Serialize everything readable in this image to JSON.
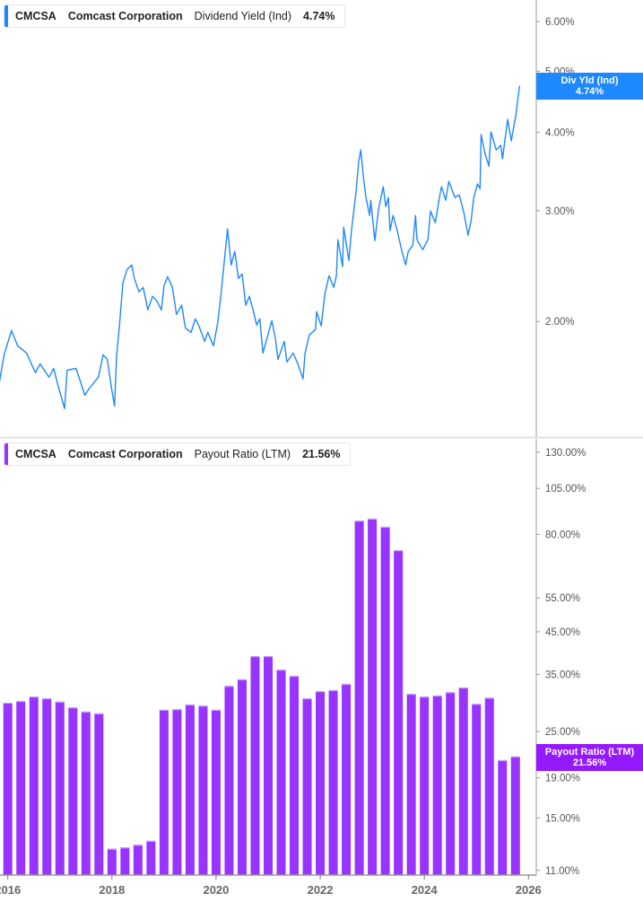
{
  "colors": {
    "yield": "#1e88ff",
    "payout": "#9933ff",
    "axis": "#9a9a9a",
    "divider": "#e0e0e0"
  },
  "top_legend": {
    "ticker": "CMCSA",
    "company": "Comcast Corporation",
    "metric": "Dividend Yield (Ind)",
    "value": "4.74%"
  },
  "top_tag": {
    "label": "Div Yld (Ind)",
    "value": "4.74%"
  },
  "bottom_legend": {
    "ticker": "CMCSA",
    "company": "Comcast Corporation",
    "metric": "Payout Ratio (LTM)",
    "value": "21.56%"
  },
  "bottom_tag": {
    "label": "Payout Ratio (LTM)",
    "value": "21.56%"
  },
  "chart_data": [
    {
      "type": "line",
      "series_name": "Dividend Yield (Ind)",
      "y_scale": "log",
      "xlim": [
        2015.85,
        2026.15
      ],
      "ylim": [
        1.31,
        6.49
      ],
      "x_ticks": [
        "2016",
        "2018",
        "2020",
        "2022",
        "2024",
        "2026"
      ],
      "y_ticks": [
        {
          "value": 6,
          "label": "6.00%"
        },
        {
          "value": 5,
          "label": "5.00%"
        },
        {
          "value": 4,
          "label": "4.00%"
        },
        {
          "value": 3,
          "label": "3.00%"
        },
        {
          "value": 2,
          "label": "2.00%"
        }
      ],
      "points": [
        [
          2015.84,
          1.604
        ],
        [
          2015.93,
          1.771
        ],
        [
          2016.07,
          1.935
        ],
        [
          2016.19,
          1.83
        ],
        [
          2016.36,
          1.782
        ],
        [
          2016.53,
          1.658
        ],
        [
          2016.62,
          1.713
        ],
        [
          2016.79,
          1.631
        ],
        [
          2016.88,
          1.685
        ],
        [
          2016.97,
          1.578
        ],
        [
          2017.09,
          1.454
        ],
        [
          2017.14,
          1.674
        ],
        [
          2017.31,
          1.685
        ],
        [
          2017.48,
          1.527
        ],
        [
          2017.57,
          1.568
        ],
        [
          2017.74,
          1.631
        ],
        [
          2017.83,
          1.771
        ],
        [
          2017.91,
          1.742
        ],
        [
          2018.0,
          1.552
        ],
        [
          2018.05,
          1.468
        ],
        [
          2018.09,
          1.771
        ],
        [
          2018.14,
          1.954
        ],
        [
          2018.21,
          2.303
        ],
        [
          2018.29,
          2.42
        ],
        [
          2018.38,
          2.46
        ],
        [
          2018.43,
          2.342
        ],
        [
          2018.52,
          2.229
        ],
        [
          2018.6,
          2.266
        ],
        [
          2018.69,
          2.087
        ],
        [
          2018.78,
          2.193
        ],
        [
          2018.86,
          2.157
        ],
        [
          2018.95,
          2.087
        ],
        [
          2019.0,
          2.281
        ],
        [
          2019.07,
          2.357
        ],
        [
          2019.16,
          2.266
        ],
        [
          2019.24,
          2.053
        ],
        [
          2019.34,
          2.122
        ],
        [
          2019.41,
          1.954
        ],
        [
          2019.52,
          1.922
        ],
        [
          2019.6,
          2.02
        ],
        [
          2019.67,
          1.968
        ],
        [
          2019.78,
          1.86
        ],
        [
          2019.84,
          1.922
        ],
        [
          2019.95,
          1.83
        ],
        [
          2020.03,
          1.987
        ],
        [
          2020.09,
          2.193
        ],
        [
          2020.16,
          2.501
        ],
        [
          2020.22,
          2.806
        ],
        [
          2020.29,
          2.46
        ],
        [
          2020.36,
          2.585
        ],
        [
          2020.43,
          2.342
        ],
        [
          2020.5,
          2.381
        ],
        [
          2020.57,
          2.122
        ],
        [
          2020.64,
          2.193
        ],
        [
          2020.71,
          2.087
        ],
        [
          2020.78,
          1.974
        ],
        [
          2020.84,
          2.02
        ],
        [
          2020.9,
          1.782
        ],
        [
          2021.07,
          2.006
        ],
        [
          2021.14,
          1.878
        ],
        [
          2021.19,
          1.742
        ],
        [
          2021.31,
          1.86
        ],
        [
          2021.36,
          1.724
        ],
        [
          2021.48,
          1.782
        ],
        [
          2021.57,
          1.713
        ],
        [
          2021.67,
          1.621
        ],
        [
          2021.71,
          1.782
        ],
        [
          2021.79,
          1.904
        ],
        [
          2021.91,
          1.942
        ],
        [
          2021.93,
          2.074
        ],
        [
          2022.02,
          1.968
        ],
        [
          2022.09,
          2.214
        ],
        [
          2022.17,
          2.365
        ],
        [
          2022.26,
          2.266
        ],
        [
          2022.31,
          2.365
        ],
        [
          2022.34,
          2.698
        ],
        [
          2022.43,
          2.444
        ],
        [
          2022.45,
          2.825
        ],
        [
          2022.55,
          2.501
        ],
        [
          2022.6,
          2.788
        ],
        [
          2022.69,
          3.222
        ],
        [
          2022.74,
          3.592
        ],
        [
          2022.78,
          3.749
        ],
        [
          2022.83,
          3.396
        ],
        [
          2022.88,
          3.149
        ],
        [
          2022.95,
          2.949
        ],
        [
          2022.97,
          3.118
        ],
        [
          2023.05,
          2.689
        ],
        [
          2023.12,
          3.017
        ],
        [
          2023.21,
          3.276
        ],
        [
          2023.26,
          3.047
        ],
        [
          2023.31,
          3.149
        ],
        [
          2023.34,
          2.788
        ],
        [
          2023.4,
          2.949
        ],
        [
          2023.48,
          2.788
        ],
        [
          2023.57,
          2.585
        ],
        [
          2023.64,
          2.46
        ],
        [
          2023.69,
          2.585
        ],
        [
          2023.78,
          2.645
        ],
        [
          2023.83,
          2.949
        ],
        [
          2023.86,
          2.698
        ],
        [
          2023.97,
          2.602
        ],
        [
          2024.07,
          2.698
        ],
        [
          2024.12,
          2.997
        ],
        [
          2024.21,
          2.872
        ],
        [
          2024.29,
          3.149
        ],
        [
          2024.33,
          3.276
        ],
        [
          2024.41,
          3.118
        ],
        [
          2024.47,
          3.341
        ],
        [
          2024.59,
          3.149
        ],
        [
          2024.67,
          3.18
        ],
        [
          2024.76,
          2.978
        ],
        [
          2024.84,
          2.743
        ],
        [
          2024.9,
          2.9
        ],
        [
          2024.95,
          3.149
        ],
        [
          2025.02,
          3.308
        ],
        [
          2025.07,
          3.254
        ],
        [
          2025.09,
          3.964
        ],
        [
          2025.16,
          3.712
        ],
        [
          2025.24,
          3.533
        ],
        [
          2025.28,
          4.004
        ],
        [
          2025.38,
          3.749
        ],
        [
          2025.47,
          3.811
        ],
        [
          2025.5,
          3.627
        ],
        [
          2025.6,
          4.193
        ],
        [
          2025.67,
          3.874
        ],
        [
          2025.76,
          4.276
        ],
        [
          2025.79,
          4.477
        ],
        [
          2025.83,
          4.74
        ]
      ]
    },
    {
      "type": "bar",
      "series_name": "Payout Ratio (LTM)",
      "y_scale": "log",
      "xlim": [
        2015.85,
        2026.15
      ],
      "ylim": [
        10.7,
        139.9
      ],
      "x_ticks": [
        "2016",
        "2018",
        "2020",
        "2022",
        "2024",
        "2026"
      ],
      "y_ticks": [
        {
          "value": 130,
          "label": "130.00%"
        },
        {
          "value": 105,
          "label": "105.00%"
        },
        {
          "value": 80,
          "label": "80.00%"
        },
        {
          "value": 55,
          "label": "55.00%"
        },
        {
          "value": 45,
          "label": "45.00%"
        },
        {
          "value": 35,
          "label": "35.00%"
        },
        {
          "value": 25,
          "label": "25.00%"
        },
        {
          "value": 19,
          "label": "19.00%"
        },
        {
          "value": 15,
          "label": "15.00%"
        },
        {
          "value": 11,
          "label": "11.00%"
        }
      ],
      "categories": [
        "2015Q4",
        "2016Q1",
        "2016Q2",
        "2016Q3",
        "2016Q4",
        "2017Q1",
        "2017Q2",
        "2017Q3",
        "2017Q4",
        "2018Q1",
        "2018Q2",
        "2018Q3",
        "2018Q4",
        "2019Q1",
        "2019Q2",
        "2019Q3",
        "2019Q4",
        "2020Q1",
        "2020Q2",
        "2020Q3",
        "2020Q4",
        "2021Q1",
        "2021Q2",
        "2021Q3",
        "2021Q4",
        "2022Q1",
        "2022Q2",
        "2022Q3",
        "2022Q4",
        "2023Q1",
        "2023Q2",
        "2023Q3",
        "2023Q4",
        "2024Q1",
        "2024Q2",
        "2024Q3",
        "2024Q4",
        "2025Q1",
        "2025Q2",
        "2025Q3"
      ],
      "values": [
        29.6,
        29.9,
        30.7,
        30.4,
        29.8,
        28.8,
        28.1,
        27.8,
        12.5,
        12.6,
        12.8,
        13.1,
        28.4,
        28.5,
        29.3,
        29.1,
        28.4,
        32.7,
        34.0,
        39.0,
        39.0,
        36.0,
        34.7,
        30.4,
        31.7,
        31.9,
        33.1,
        86.8,
        87.8,
        83.7,
        72.9,
        31.2,
        30.7,
        30.9,
        31.5,
        32.4,
        29.4,
        30.5,
        21.1,
        21.56
      ]
    }
  ]
}
